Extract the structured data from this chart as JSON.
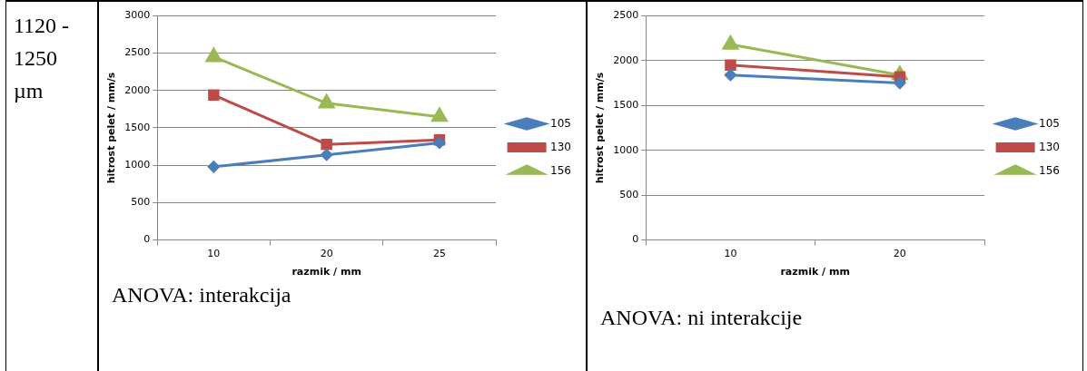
{
  "chart_data": [
    {
      "type": "other",
      "annotations": [
        "1120 - 1250 µm"
      ]
    },
    {
      "type": "line",
      "categories": [
        "10",
        "20",
        "25"
      ],
      "xlabel": "razmik / mm",
      "ylabel": "hitrost pelet / mm/s",
      "ylim": [
        0,
        3000
      ],
      "yticks": [
        0,
        500,
        1000,
        1500,
        2000,
        2500,
        3000
      ],
      "grid": "y",
      "legend": "right",
      "series": [
        {
          "name": "105",
          "color": "#4a7ebb",
          "marker": "diamond",
          "values": [
            980,
            1140,
            1300
          ]
        },
        {
          "name": "130",
          "color": "#be4b48",
          "marker": "square",
          "values": [
            1940,
            1280,
            1340
          ]
        },
        {
          "name": "156",
          "color": "#98b954",
          "marker": "triangle",
          "values": [
            2450,
            1830,
            1650
          ]
        }
      ],
      "annotations": [
        "ANOVA: interakcija"
      ]
    },
    {
      "type": "line",
      "categories": [
        "10",
        "20"
      ],
      "xlabel": "razmik / mm",
      "ylabel": "hitrost pelet / mm/s",
      "ylim": [
        0,
        2500
      ],
      "yticks": [
        0,
        500,
        1000,
        1500,
        2000,
        2500
      ],
      "grid": "y",
      "legend": "right",
      "series": [
        {
          "name": "105",
          "color": "#4a7ebb",
          "marker": "diamond",
          "values": [
            1840,
            1750
          ]
        },
        {
          "name": "130",
          "color": "#be4b48",
          "marker": "square",
          "values": [
            1950,
            1820
          ]
        },
        {
          "name": "156",
          "color": "#98b954",
          "marker": "triangle",
          "values": [
            2180,
            1840
          ]
        }
      ],
      "annotations": [
        "ANOVA: ni interakcije"
      ]
    }
  ]
}
